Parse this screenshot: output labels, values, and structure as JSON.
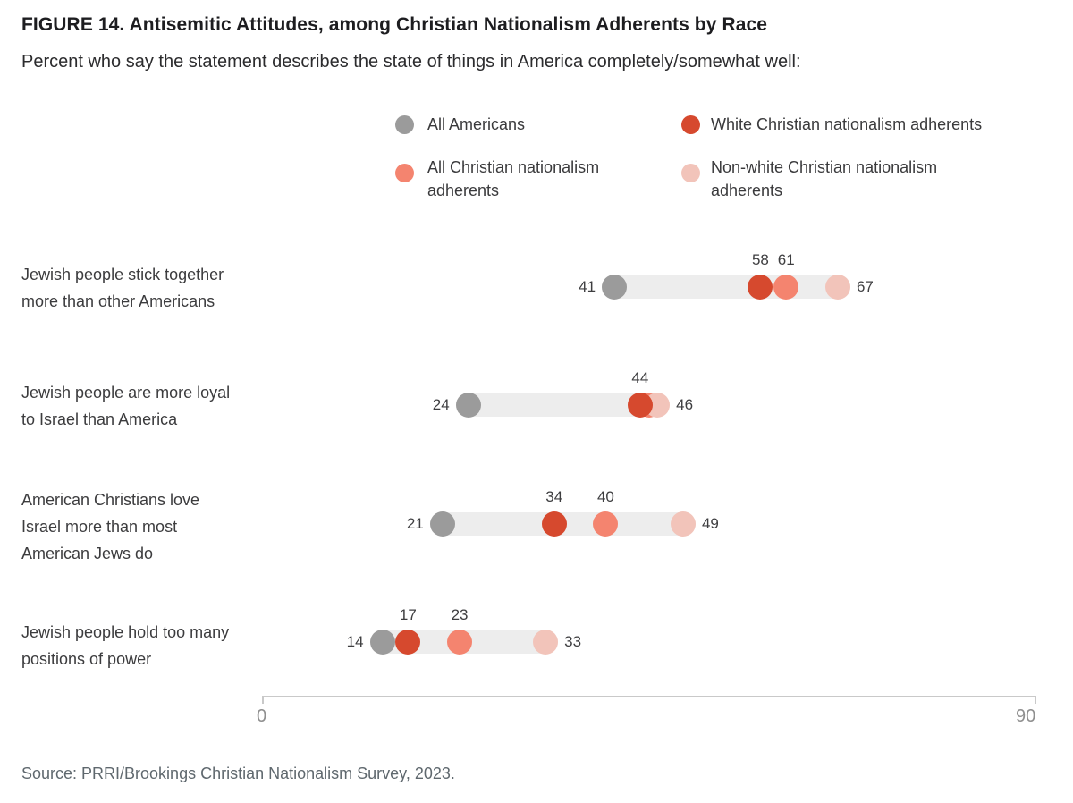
{
  "title": "FIGURE 14. Antisemitic Attitudes, among Christian Nationalism Adherents by Race",
  "subtitle": "Percent who say the statement describes the state of things in America completely/somewhat well:",
  "source": "Source: PRRI/Brookings Christian Nationalism Survey, 2023.",
  "colors": {
    "all_americans": "#9b9b9b",
    "white_cn": "#d6492e",
    "all_cn": "#f4846f",
    "non_white_cn": "#f2c4ba",
    "track": "#ededed",
    "axis": "#c9c9c9"
  },
  "legend": {
    "items": [
      {
        "label": "All Americans",
        "color_key": "all_americans"
      },
      {
        "label": "White Christian nationalism adherents",
        "color_key": "white_cn"
      },
      {
        "label": "All Christian nationalism adherents",
        "color_key": "all_cn"
      },
      {
        "label": "Non-white Christian nationalism adherents",
        "color_key": "non_white_cn"
      }
    ]
  },
  "chart_data": {
    "type": "dot-plot",
    "xlim": [
      0,
      90
    ],
    "x_tick_labels": [
      "0",
      "90"
    ],
    "grid": false,
    "legend_position": "top",
    "categories": [
      {
        "lines": [
          "Jewish people stick together",
          "more than other Americans"
        ]
      },
      {
        "lines": [
          "Jewish people are more loyal",
          "to Israel than America"
        ]
      },
      {
        "lines": [
          "American Christians love",
          "Israel more than most",
          "American Jews do"
        ]
      },
      {
        "lines": [
          "Jewish people hold too many",
          "positions of power"
        ]
      }
    ],
    "series": [
      {
        "name": "All Americans",
        "color_key": "all_americans",
        "values": [
          41,
          24,
          21,
          14
        ],
        "label_position": "left",
        "hidden_value_labels": []
      },
      {
        "name": "All Christian nationalism adherents",
        "color_key": "all_cn",
        "values": [
          61,
          45,
          40,
          23
        ],
        "label_position": "top",
        "hidden_value_labels": [
          1
        ]
      },
      {
        "name": "Non-white Christian nationalism adherents",
        "color_key": "non_white_cn",
        "values": [
          67,
          46,
          49,
          33
        ],
        "label_position": "right",
        "hidden_value_labels": []
      },
      {
        "name": "White Christian nationalism adherents",
        "color_key": "white_cn",
        "values": [
          58,
          44,
          34,
          17
        ],
        "label_position": "top",
        "hidden_value_labels": []
      }
    ]
  }
}
